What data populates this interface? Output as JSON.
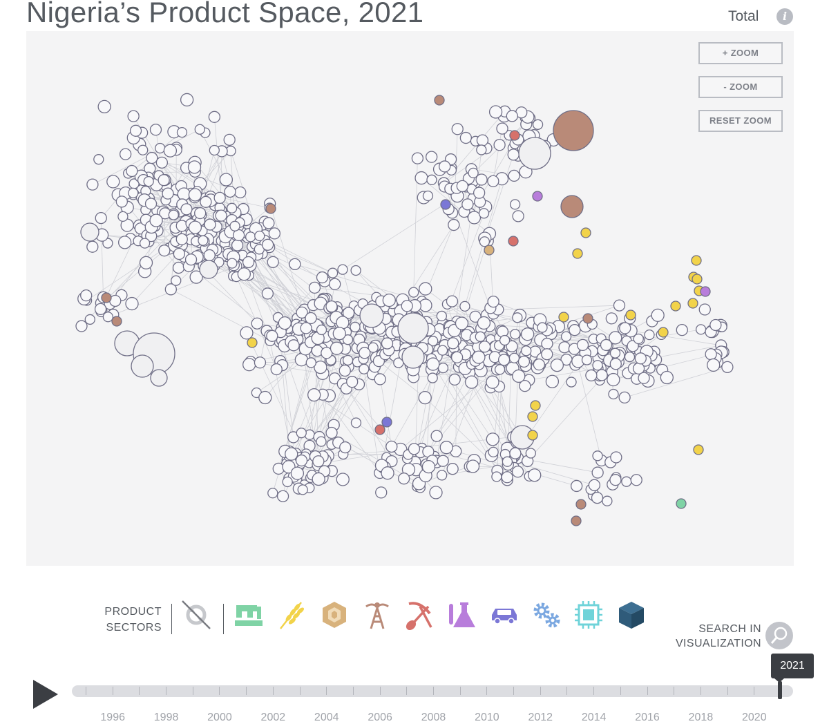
{
  "header": {
    "title": "Nigeria’s Product Space, 2021",
    "view_mode": "Total",
    "info_icon": "info-icon"
  },
  "zoom": {
    "zoom_in": "+ ZOOM",
    "zoom_out": "- ZOOM",
    "reset": "RESET ZOOM"
  },
  "legend": {
    "label_line1": "PRODUCT",
    "label_line2": "SECTORS",
    "sectors": [
      {
        "name": "services",
        "icon": "services-icon",
        "color": "#9a9ca3"
      },
      {
        "name": "textiles",
        "icon": "sewing-machine-icon",
        "color": "#7fd3a5"
      },
      {
        "name": "agriculture",
        "icon": "wheat-icon",
        "color": "#f2d34a"
      },
      {
        "name": "stone",
        "icon": "gem-icon",
        "color": "#d8b27c"
      },
      {
        "name": "minerals",
        "icon": "oil-rig-icon",
        "color": "#b98a78"
      },
      {
        "name": "metals",
        "icon": "pickaxe-shovel-icon",
        "color": "#d6716b"
      },
      {
        "name": "chemicals",
        "icon": "flask-icon",
        "color": "#b87ddb"
      },
      {
        "name": "vehicles",
        "icon": "car-icon",
        "color": "#7b77d6"
      },
      {
        "name": "machinery",
        "icon": "gears-icon",
        "color": "#7aa7e0"
      },
      {
        "name": "electronics",
        "icon": "chip-icon",
        "color": "#6fd3d9"
      },
      {
        "name": "other",
        "icon": "box-icon",
        "color": "#2f5b7a"
      }
    ]
  },
  "search": {
    "label_line1": "SEARCH IN",
    "label_line2": "VISUALIZATION",
    "icon": "search-icon"
  },
  "timeline": {
    "play_icon": "play-icon",
    "selected_year": "2021",
    "start_year": 1995,
    "end_year": 2021,
    "year_labels": [
      "1996",
      "1998",
      "2000",
      "2002",
      "2004",
      "2006",
      "2008",
      "2010",
      "2012",
      "2014",
      "2016",
      "2018",
      "2020"
    ]
  },
  "network": {
    "highlighted_products": [
      {
        "sector": "minerals",
        "color": "#b98a78",
        "size": "large"
      },
      {
        "sector": "minerals",
        "color": "#b98a78",
        "size": "medium"
      },
      {
        "sector": "minerals",
        "color": "#b98a78",
        "size": "small"
      },
      {
        "sector": "agriculture",
        "color": "#f2d34a",
        "size": "small"
      },
      {
        "sector": "metals",
        "color": "#d6716b",
        "size": "small"
      },
      {
        "sector": "chemicals",
        "color": "#b87ddb",
        "size": "small"
      },
      {
        "sector": "vehicles",
        "color": "#7b77d6",
        "size": "small"
      },
      {
        "sector": "textiles",
        "color": "#7fd3a5",
        "size": "small"
      },
      {
        "sector": "stone",
        "color": "#d8b27c",
        "size": "small"
      }
    ]
  }
}
